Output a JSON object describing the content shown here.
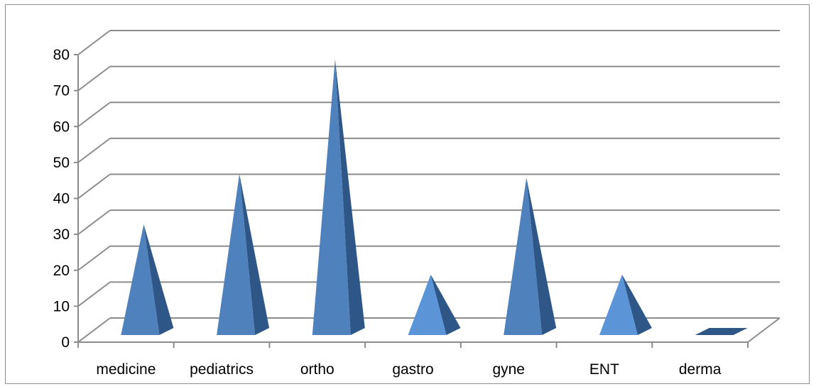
{
  "chart_data": {
    "type": "bar",
    "shape": "3d-pyramid",
    "title": "",
    "xlabel": "",
    "ylabel": "",
    "categories": [
      "medicine",
      "pediatrics",
      "ortho",
      "gastro",
      "gyne",
      "ENT",
      "derma"
    ],
    "values": [
      32,
      46,
      78,
      18,
      45,
      18,
      0
    ],
    "ylim": [
      0,
      80
    ],
    "yticks": [
      "0",
      "10",
      "20",
      "30",
      "40",
      "50",
      "60",
      "70",
      "80"
    ],
    "grid": true,
    "legend": "none",
    "colors": {
      "front": "#4F81BD",
      "front_light": "#5C94D8",
      "side": "#2E5687",
      "grid": "#8c8c8c"
    }
  }
}
